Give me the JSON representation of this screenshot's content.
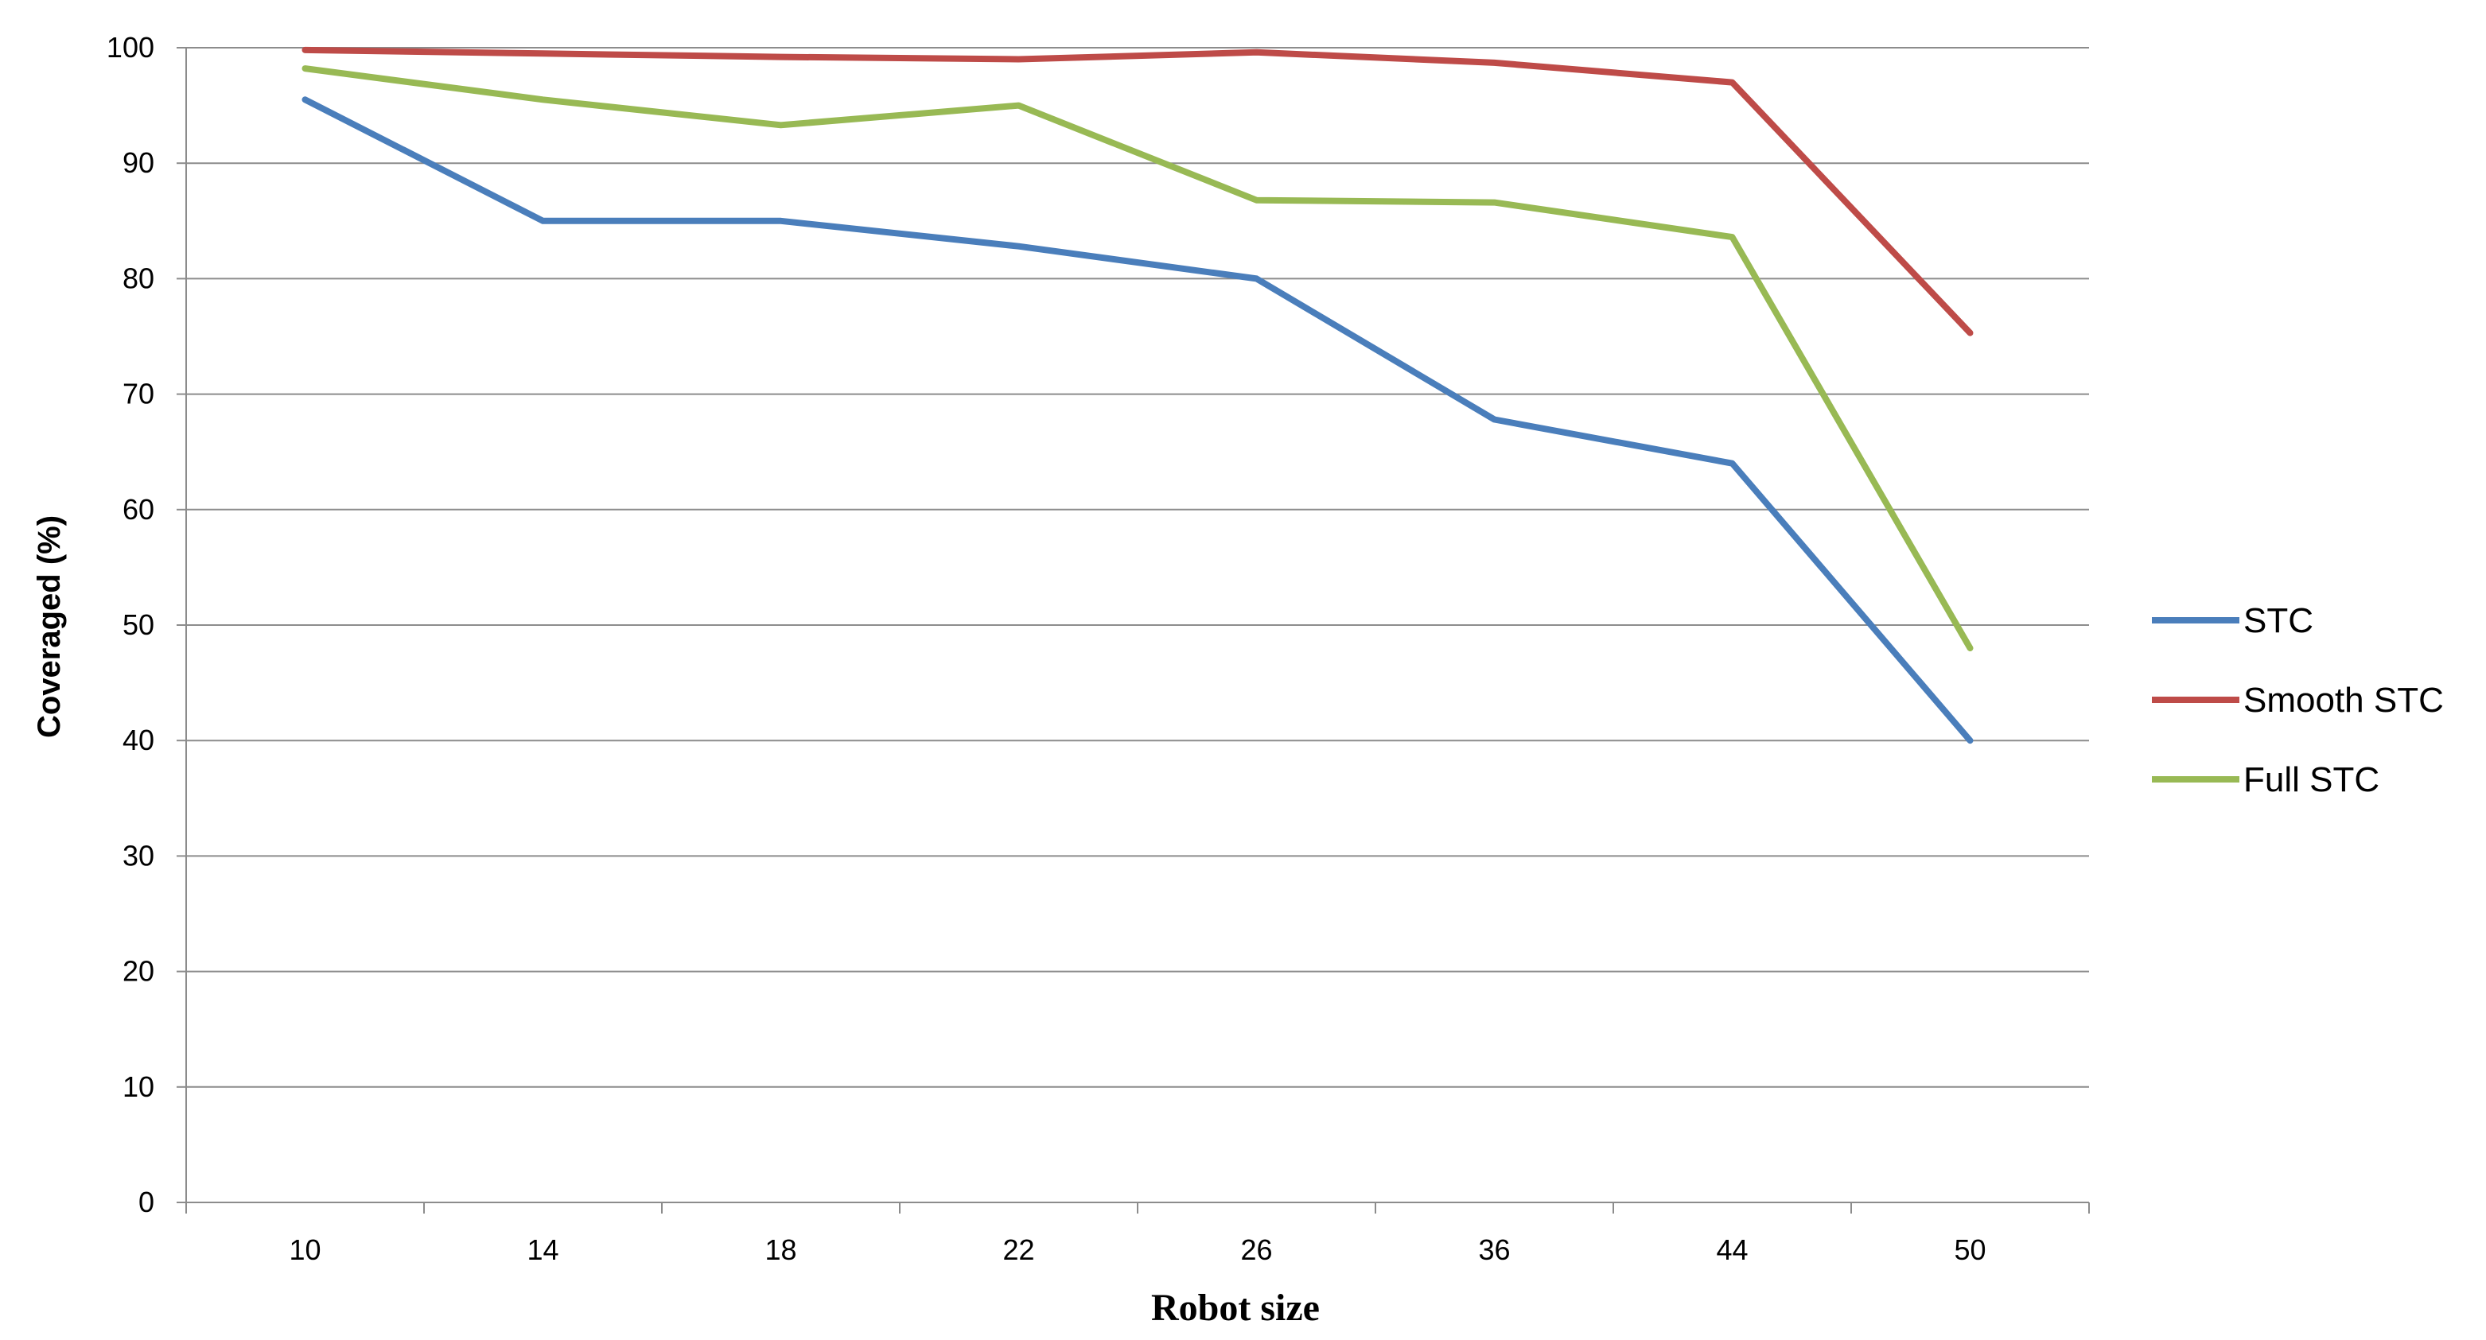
{
  "chart_data": {
    "type": "line",
    "title": "",
    "xlabel": "Robot size",
    "ylabel": "Coveraged (%)",
    "categories": [
      "10",
      "14",
      "18",
      "22",
      "26",
      "36",
      "44",
      "50"
    ],
    "ylim": [
      0,
      100
    ],
    "yticks": [
      0,
      10,
      20,
      30,
      40,
      50,
      60,
      70,
      80,
      90,
      100
    ],
    "grid": "horizontal",
    "legend_position": "right",
    "series": [
      {
        "name": "STC",
        "color": "#4a7ebb",
        "values": [
          95.5,
          85,
          85,
          82.8,
          80,
          67.8,
          64,
          40
        ]
      },
      {
        "name": "Smooth STC",
        "color": "#be4b48",
        "values": [
          99.8,
          99.5,
          99.2,
          99,
          99.6,
          98.7,
          97,
          75.3
        ]
      },
      {
        "name": "Full STC",
        "color": "#98b954",
        "values": [
          98.2,
          95.5,
          93.3,
          95,
          86.8,
          86.6,
          83.6,
          48
        ]
      }
    ]
  }
}
